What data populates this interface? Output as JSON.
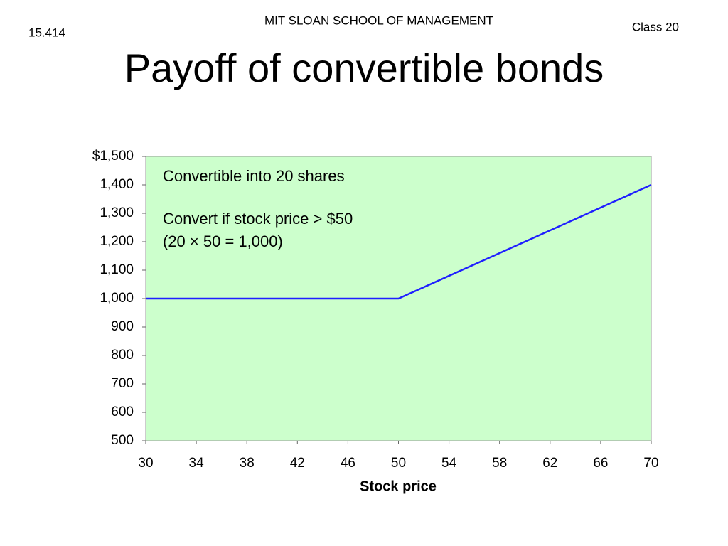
{
  "header": {
    "school": "MIT SLOAN SCHOOL OF MANAGEMENT",
    "course": "15.414",
    "session": "Class 20",
    "title": "Payoff of convertible bonds"
  },
  "chart_data": {
    "type": "line",
    "xlabel": "Stock price",
    "annotations": [
      "Convertible into 20 shares",
      "Convert if stock price > $50",
      "(20 × 50 = 1,000)"
    ],
    "x": [
      30,
      50,
      70
    ],
    "series": [
      {
        "color": "#1f1fff",
        "values": [
          1000,
          1000,
          1400
        ]
      }
    ],
    "xlim": [
      30,
      70
    ],
    "xticks": [
      30,
      34,
      38,
      42,
      46,
      50,
      54,
      58,
      62,
      66,
      70
    ],
    "ylim": [
      500,
      1500
    ],
    "yticks": [
      500,
      600,
      700,
      800,
      900,
      {
        "value": 1000,
        "label": "1,000"
      },
      {
        "value": 1100,
        "label": "1,100"
      },
      {
        "value": 1200,
        "label": "1,200"
      },
      {
        "value": 1300,
        "label": "1,300"
      },
      {
        "value": 1400,
        "label": "1,400"
      },
      {
        "value": 1500,
        "label": "$1,500"
      }
    ],
    "plot_background": "#ccffcc"
  }
}
